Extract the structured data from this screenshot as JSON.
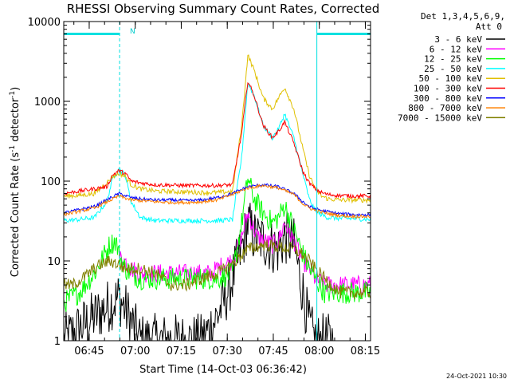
{
  "chart_data": {
    "type": "line",
    "title": "RHESSI Observing Summary Count Rates, Corrected",
    "ylabel_main": "Corrected Count Rate (s",
    "ylabel_sup1": "-1",
    "ylabel_mid": " detector",
    "ylabel_sup2": "-1",
    "ylabel_end": ")",
    "xlabel": "Start Time (14-Oct-03 06:36:42)",
    "footer_date": "24-Oct-2021 10:30",
    "legend_header_1": "Det 1,3,4,5,6,9,",
    "legend_header_2": "Att 0",
    "yscale": "log",
    "ylim": [
      1,
      10000
    ],
    "xlim_minutes": [
      0,
      100
    ],
    "y_ticks": [
      {
        "value": 1,
        "label": "1"
      },
      {
        "value": 10,
        "label": "10"
      },
      {
        "value": 100,
        "label": "100"
      },
      {
        "value": 1000,
        "label": "1000"
      },
      {
        "value": 10000,
        "label": "10000"
      }
    ],
    "x_ticks": [
      {
        "minute": 8.3,
        "label": "06:45"
      },
      {
        "minute": 23.3,
        "label": "07:00"
      },
      {
        "minute": 38.3,
        "label": "07:15"
      },
      {
        "minute": 53.3,
        "label": "07:30"
      },
      {
        "minute": 68.3,
        "label": "07:45"
      },
      {
        "minute": 83.3,
        "label": "08:00"
      },
      {
        "minute": 98.3,
        "label": "08:15"
      }
    ],
    "night_marker": "N",
    "night_bar_y": 7000,
    "night_intervals": [
      [
        0,
        18.2
      ],
      [
        82.5,
        100
      ]
    ],
    "vertical_markers": [
      0,
      18.2,
      82.5,
      100
    ],
    "series": [
      {
        "name": "3 - 6 keV",
        "color": "#000000",
        "x": [
          0,
          10,
          18,
          20,
          25,
          30,
          40,
          45,
          50,
          52,
          55,
          58,
          60,
          62,
          65,
          68,
          70,
          72,
          75,
          78,
          80,
          82,
          85,
          88
        ],
        "y": [
          1,
          2,
          3.5,
          2.5,
          1,
          1,
          1,
          1,
          2,
          3,
          6,
          14,
          30,
          20,
          18,
          15,
          14,
          20,
          16,
          4,
          1.5,
          1,
          1,
          1
        ]
      },
      {
        "name": "6 - 12 keV",
        "color": "#ff00ff",
        "x": [
          18,
          20,
          22,
          25,
          30,
          35,
          40,
          45,
          48,
          50,
          52,
          55,
          58,
          60,
          62,
          63,
          65,
          68,
          70,
          72,
          75,
          78,
          80,
          82,
          85,
          88,
          92,
          96,
          100
        ],
        "y": [
          11,
          10,
          8,
          7,
          7,
          7,
          7,
          7,
          7,
          8,
          9,
          10,
          20,
          40,
          25,
          20,
          18,
          16,
          18,
          30,
          18,
          10,
          8,
          6,
          5,
          5,
          5,
          5,
          5
        ]
      },
      {
        "name": "12 - 25 keV",
        "color": "#00ff00",
        "x": [
          0,
          5,
          10,
          15,
          17,
          18,
          20,
          22,
          25,
          30,
          40,
          45,
          50,
          55,
          58,
          60,
          62,
          65,
          68,
          70,
          72,
          75,
          78,
          80,
          82,
          85,
          88,
          90,
          95,
          100
        ],
        "y": [
          3,
          4,
          7,
          16,
          18,
          12,
          8,
          7,
          6,
          6,
          6,
          6,
          6,
          7,
          30,
          110,
          60,
          40,
          30,
          35,
          50,
          25,
          12,
          8,
          6,
          4,
          4,
          4,
          4,
          4
        ]
      },
      {
        "name": "25 - 50 keV",
        "color": "#00ffff",
        "x": [
          0,
          5,
          10,
          14,
          16,
          18,
          20,
          22,
          25,
          30,
          40,
          45,
          50,
          55,
          58,
          60,
          62,
          65,
          68,
          70,
          72,
          75,
          78,
          80,
          82,
          84,
          86,
          90,
          95,
          100
        ],
        "y": [
          32,
          33,
          35,
          55,
          110,
          140,
          120,
          55,
          35,
          32,
          32,
          32,
          32,
          33,
          200,
          1700,
          1200,
          500,
          350,
          450,
          700,
          350,
          120,
          60,
          42,
          38,
          35,
          34,
          34,
          33
        ]
      },
      {
        "name": "50 - 100 keV",
        "color": "#e0c000",
        "x": [
          0,
          5,
          10,
          14,
          16,
          18,
          20,
          22,
          25,
          30,
          40,
          45,
          50,
          55,
          58,
          60,
          62,
          65,
          68,
          70,
          72,
          75,
          78,
          80,
          82,
          84,
          86,
          90,
          95,
          100
        ],
        "y": [
          65,
          66,
          70,
          95,
          115,
          125,
          115,
          90,
          80,
          75,
          73,
          72,
          72,
          74,
          500,
          3800,
          2500,
          1100,
          800,
          1100,
          1500,
          800,
          250,
          120,
          80,
          65,
          60,
          58,
          58,
          58
        ]
      },
      {
        "name": "100 - 300 keV",
        "color": "#ff0000",
        "x": [
          0,
          5,
          10,
          14,
          16,
          18,
          20,
          22,
          25,
          30,
          40,
          45,
          50,
          55,
          58,
          60,
          62,
          65,
          68,
          70,
          72,
          75,
          78,
          80,
          82,
          84,
          86,
          90,
          95,
          100
        ],
        "y": [
          70,
          75,
          80,
          85,
          120,
          135,
          125,
          100,
          95,
          90,
          88,
          88,
          88,
          90,
          400,
          1800,
          1200,
          500,
          350,
          420,
          550,
          300,
          130,
          95,
          80,
          72,
          68,
          66,
          65,
          65
        ]
      },
      {
        "name": "300 - 800 keV",
        "color": "#0000ff",
        "x": [
          0,
          10,
          18,
          22,
          25,
          30,
          35,
          40,
          45,
          50,
          55,
          60,
          65,
          70,
          75,
          78,
          80,
          82,
          85,
          90,
          95,
          100
        ],
        "y": [
          40,
          48,
          70,
          62,
          60,
          58,
          58,
          57,
          58,
          62,
          70,
          85,
          90,
          85,
          70,
          55,
          48,
          45,
          42,
          39,
          38,
          38
        ]
      },
      {
        "name": "800 - 7000 keV",
        "color": "#ff8000",
        "x": [
          0,
          10,
          18,
          22,
          25,
          30,
          35,
          40,
          45,
          50,
          55,
          60,
          65,
          70,
          75,
          78,
          80,
          82,
          85,
          90,
          95,
          100
        ],
        "y": [
          38,
          46,
          65,
          58,
          57,
          55,
          54,
          54,
          55,
          58,
          68,
          82,
          88,
          82,
          68,
          52,
          46,
          43,
          40,
          37,
          36,
          36
        ]
      },
      {
        "name": "7000 - 15000 keV",
        "color": "#808000",
        "x": [
          0,
          3,
          6,
          10,
          12,
          15,
          18,
          20,
          25,
          30,
          35,
          40,
          45,
          50,
          55,
          58,
          60,
          65,
          70,
          75,
          78,
          80,
          82,
          85,
          90,
          95,
          100
        ],
        "y": [
          5,
          5,
          6,
          8,
          9,
          10,
          9,
          8,
          8,
          7,
          5,
          5,
          6,
          7,
          9,
          12,
          14,
          16,
          15,
          14,
          12,
          10,
          8,
          6,
          4,
          4,
          4
        ]
      }
    ]
  }
}
